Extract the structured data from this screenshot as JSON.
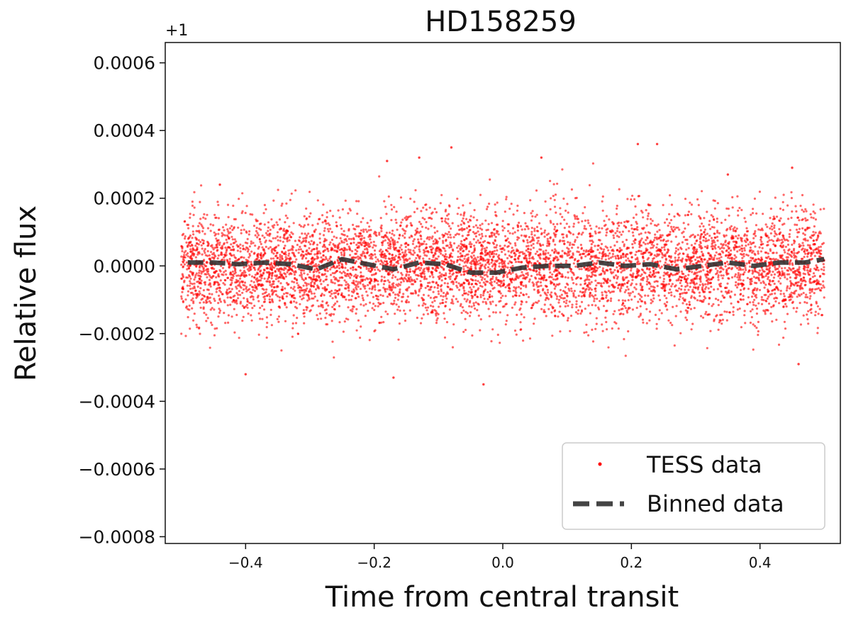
{
  "chart_data": {
    "type": "scatter",
    "title": "HD158259",
    "xlabel": "Time from central transit",
    "ylabel": "Relative flux",
    "y_offset_label": "+1",
    "xlim": [
      -0.525,
      0.525
    ],
    "ylim": [
      -0.00082,
      0.00066
    ],
    "x_ticks": [
      -0.4,
      -0.2,
      0.0,
      0.2,
      0.4
    ],
    "x_tick_labels": [
      "−0.4",
      "−0.2",
      "0.0",
      "0.2",
      "0.4"
    ],
    "y_ticks": [
      0.0006,
      0.0004,
      0.0002,
      0.0,
      -0.0002,
      -0.0004,
      -0.0006,
      -0.0008
    ],
    "y_tick_labels": [
      "0.0006",
      "0.0004",
      "0.0002",
      "0.0000",
      "−0.0002",
      "−0.0004",
      "−0.0006",
      "−0.0008"
    ],
    "grid": false,
    "legend_position": "lower-right",
    "series": [
      {
        "name": "TESS data",
        "kind": "scatter",
        "color": "#ff0000",
        "x_range": [
          -0.5,
          0.5
        ],
        "mean": 0.0,
        "scatter_std": 8e-05,
        "notable_outliers": [
          {
            "x": -0.44,
            "y": 0.00024
          },
          {
            "x": -0.4,
            "y": -0.00032
          },
          {
            "x": -0.18,
            "y": 0.00031
          },
          {
            "x": -0.17,
            "y": -0.00033
          },
          {
            "x": -0.13,
            "y": 0.00032
          },
          {
            "x": -0.08,
            "y": 0.00035
          },
          {
            "x": -0.03,
            "y": -0.00035
          },
          {
            "x": 0.06,
            "y": 0.00032
          },
          {
            "x": 0.21,
            "y": 0.00036
          },
          {
            "x": 0.24,
            "y": 0.00036
          },
          {
            "x": 0.35,
            "y": 0.00027
          },
          {
            "x": 0.45,
            "y": 0.00029
          },
          {
            "x": 0.46,
            "y": -0.00029
          }
        ]
      },
      {
        "name": "Binned data",
        "kind": "line",
        "style": "dashed",
        "color": "#333333",
        "x": [
          -0.49,
          -0.45,
          -0.41,
          -0.37,
          -0.33,
          -0.29,
          -0.25,
          -0.21,
          -0.17,
          -0.13,
          -0.09,
          -0.05,
          -0.01,
          0.03,
          0.07,
          0.11,
          0.15,
          0.19,
          0.23,
          0.27,
          0.31,
          0.35,
          0.39,
          0.43,
          0.47,
          0.5
        ],
        "y": [
          1e-05,
          1e-05,
          5e-06,
          1e-05,
          5e-06,
          -1e-05,
          2e-05,
          5e-06,
          -1e-05,
          1e-05,
          5e-06,
          -2e-05,
          -2e-05,
          -5e-06,
          0.0,
          0.0,
          1e-05,
          0.0,
          5e-06,
          -1e-05,
          0.0,
          1e-05,
          0.0,
          1e-05,
          1e-05,
          2e-05
        ]
      }
    ]
  }
}
